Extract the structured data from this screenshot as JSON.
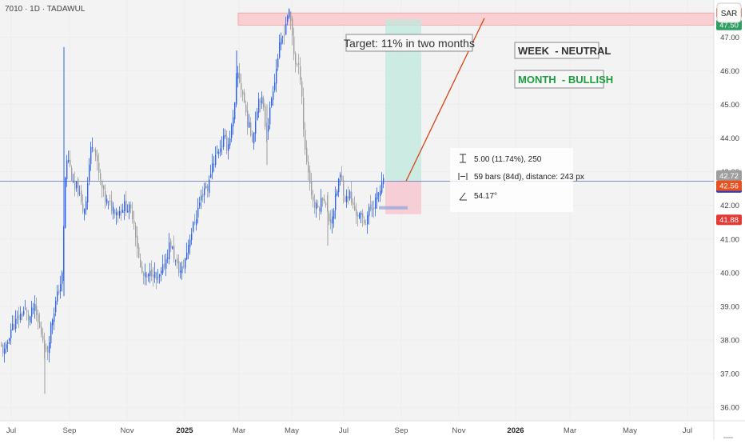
{
  "header": {
    "symbol_line": "7010 · 1D · TADAWUL",
    "currency_button": "SAR"
  },
  "annotations": {
    "target_label": "Target: 11% in two months",
    "week_label": "WEEK  - NEUTRAL",
    "month_label": "MONTH  - BULLISH",
    "measure_line1": "5.00 (11.74%), 250",
    "measure_line2": "59 bars (84d), distance: 243 px",
    "measure_line3": "54.17°"
  },
  "colors": {
    "up_candle": "#2962ff",
    "gray_candle": "#9e9e9e",
    "target_zone": "#f8c9cc",
    "long_profit": "#bfe8dc",
    "long_stop": "#f6c7cf",
    "trend_line": "#d84315",
    "h_line": "#5c6bc0",
    "week_text": "#333333",
    "month_text": "#1b9e3e",
    "label_orange": "#e8511f",
    "label_green": "#2e9e62",
    "label_blue": "#2a3fbf",
    "label_red": "#e53935",
    "label_gray": "#9e9e9e"
  },
  "chart_data": {
    "type": "candlestick",
    "title": "7010 · 1D · TADAWUL",
    "currency": "SAR",
    "ylim": [
      35.6,
      48.1
    ],
    "y_ticks": [
      "36.00",
      "37.00",
      "38.00",
      "39.00",
      "40.00",
      "41.00",
      "42.00",
      "43.00",
      "44.00",
      "45.00",
      "46.00",
      "47.00"
    ],
    "x_ticks": [
      "Jul",
      "Sep",
      "Nov",
      "2025",
      "Mar",
      "May",
      "Jul",
      "Sep",
      "Nov",
      "2026",
      "Mar",
      "May",
      "Jul"
    ],
    "bold_x_ticks": [
      "2025",
      "2026"
    ],
    "price_labels": [
      {
        "value": "47.56",
        "price": 47.56,
        "color": "orange"
      },
      {
        "value": "47.50",
        "price": 47.5,
        "color": "green"
      },
      {
        "value": "42.72",
        "price": 42.72,
        "color": "gray"
      },
      {
        "value": "42.72",
        "price": 42.72,
        "color": "blue"
      },
      {
        "value": "42.56",
        "price": 42.56,
        "color": "orange"
      },
      {
        "value": "41.88",
        "price": 41.88,
        "color": "red"
      }
    ],
    "target_zone": {
      "from": 47.45,
      "to": 47.62,
      "start": "Mar 2025"
    },
    "horizontal_line": 42.72,
    "long_position": {
      "entry": 42.72,
      "target": 47.56,
      "stop": 41.88
    },
    "trend_line": {
      "from_price": 42.72,
      "to_price": 47.56
    },
    "approx_closes": [
      {
        "date": "Jul 2024",
        "close": 37.9
      },
      {
        "date": "Aug 2024",
        "close": 39.1
      },
      {
        "date": "Sep 2024",
        "close": 42.8
      },
      {
        "date": "Oct 2024",
        "close": 42.0
      },
      {
        "date": "Nov 2024",
        "close": 40.0
      },
      {
        "date": "Dec 2024",
        "close": 40.3
      },
      {
        "date": "Jan 2025",
        "close": 42.0
      },
      {
        "date": "Feb 2025",
        "close": 44.0
      },
      {
        "date": "Mar 2025",
        "close": 45.0
      },
      {
        "date": "Apr 2025",
        "close": 46.0
      },
      {
        "date": "Late Apr 2025",
        "close": 47.7
      },
      {
        "date": "May 2025",
        "close": 46.1
      },
      {
        "date": "Jun 2025",
        "close": 41.9
      },
      {
        "date": "Jul 2025",
        "close": 42.2
      },
      {
        "date": "Aug 2025",
        "close": 42.72
      }
    ]
  }
}
